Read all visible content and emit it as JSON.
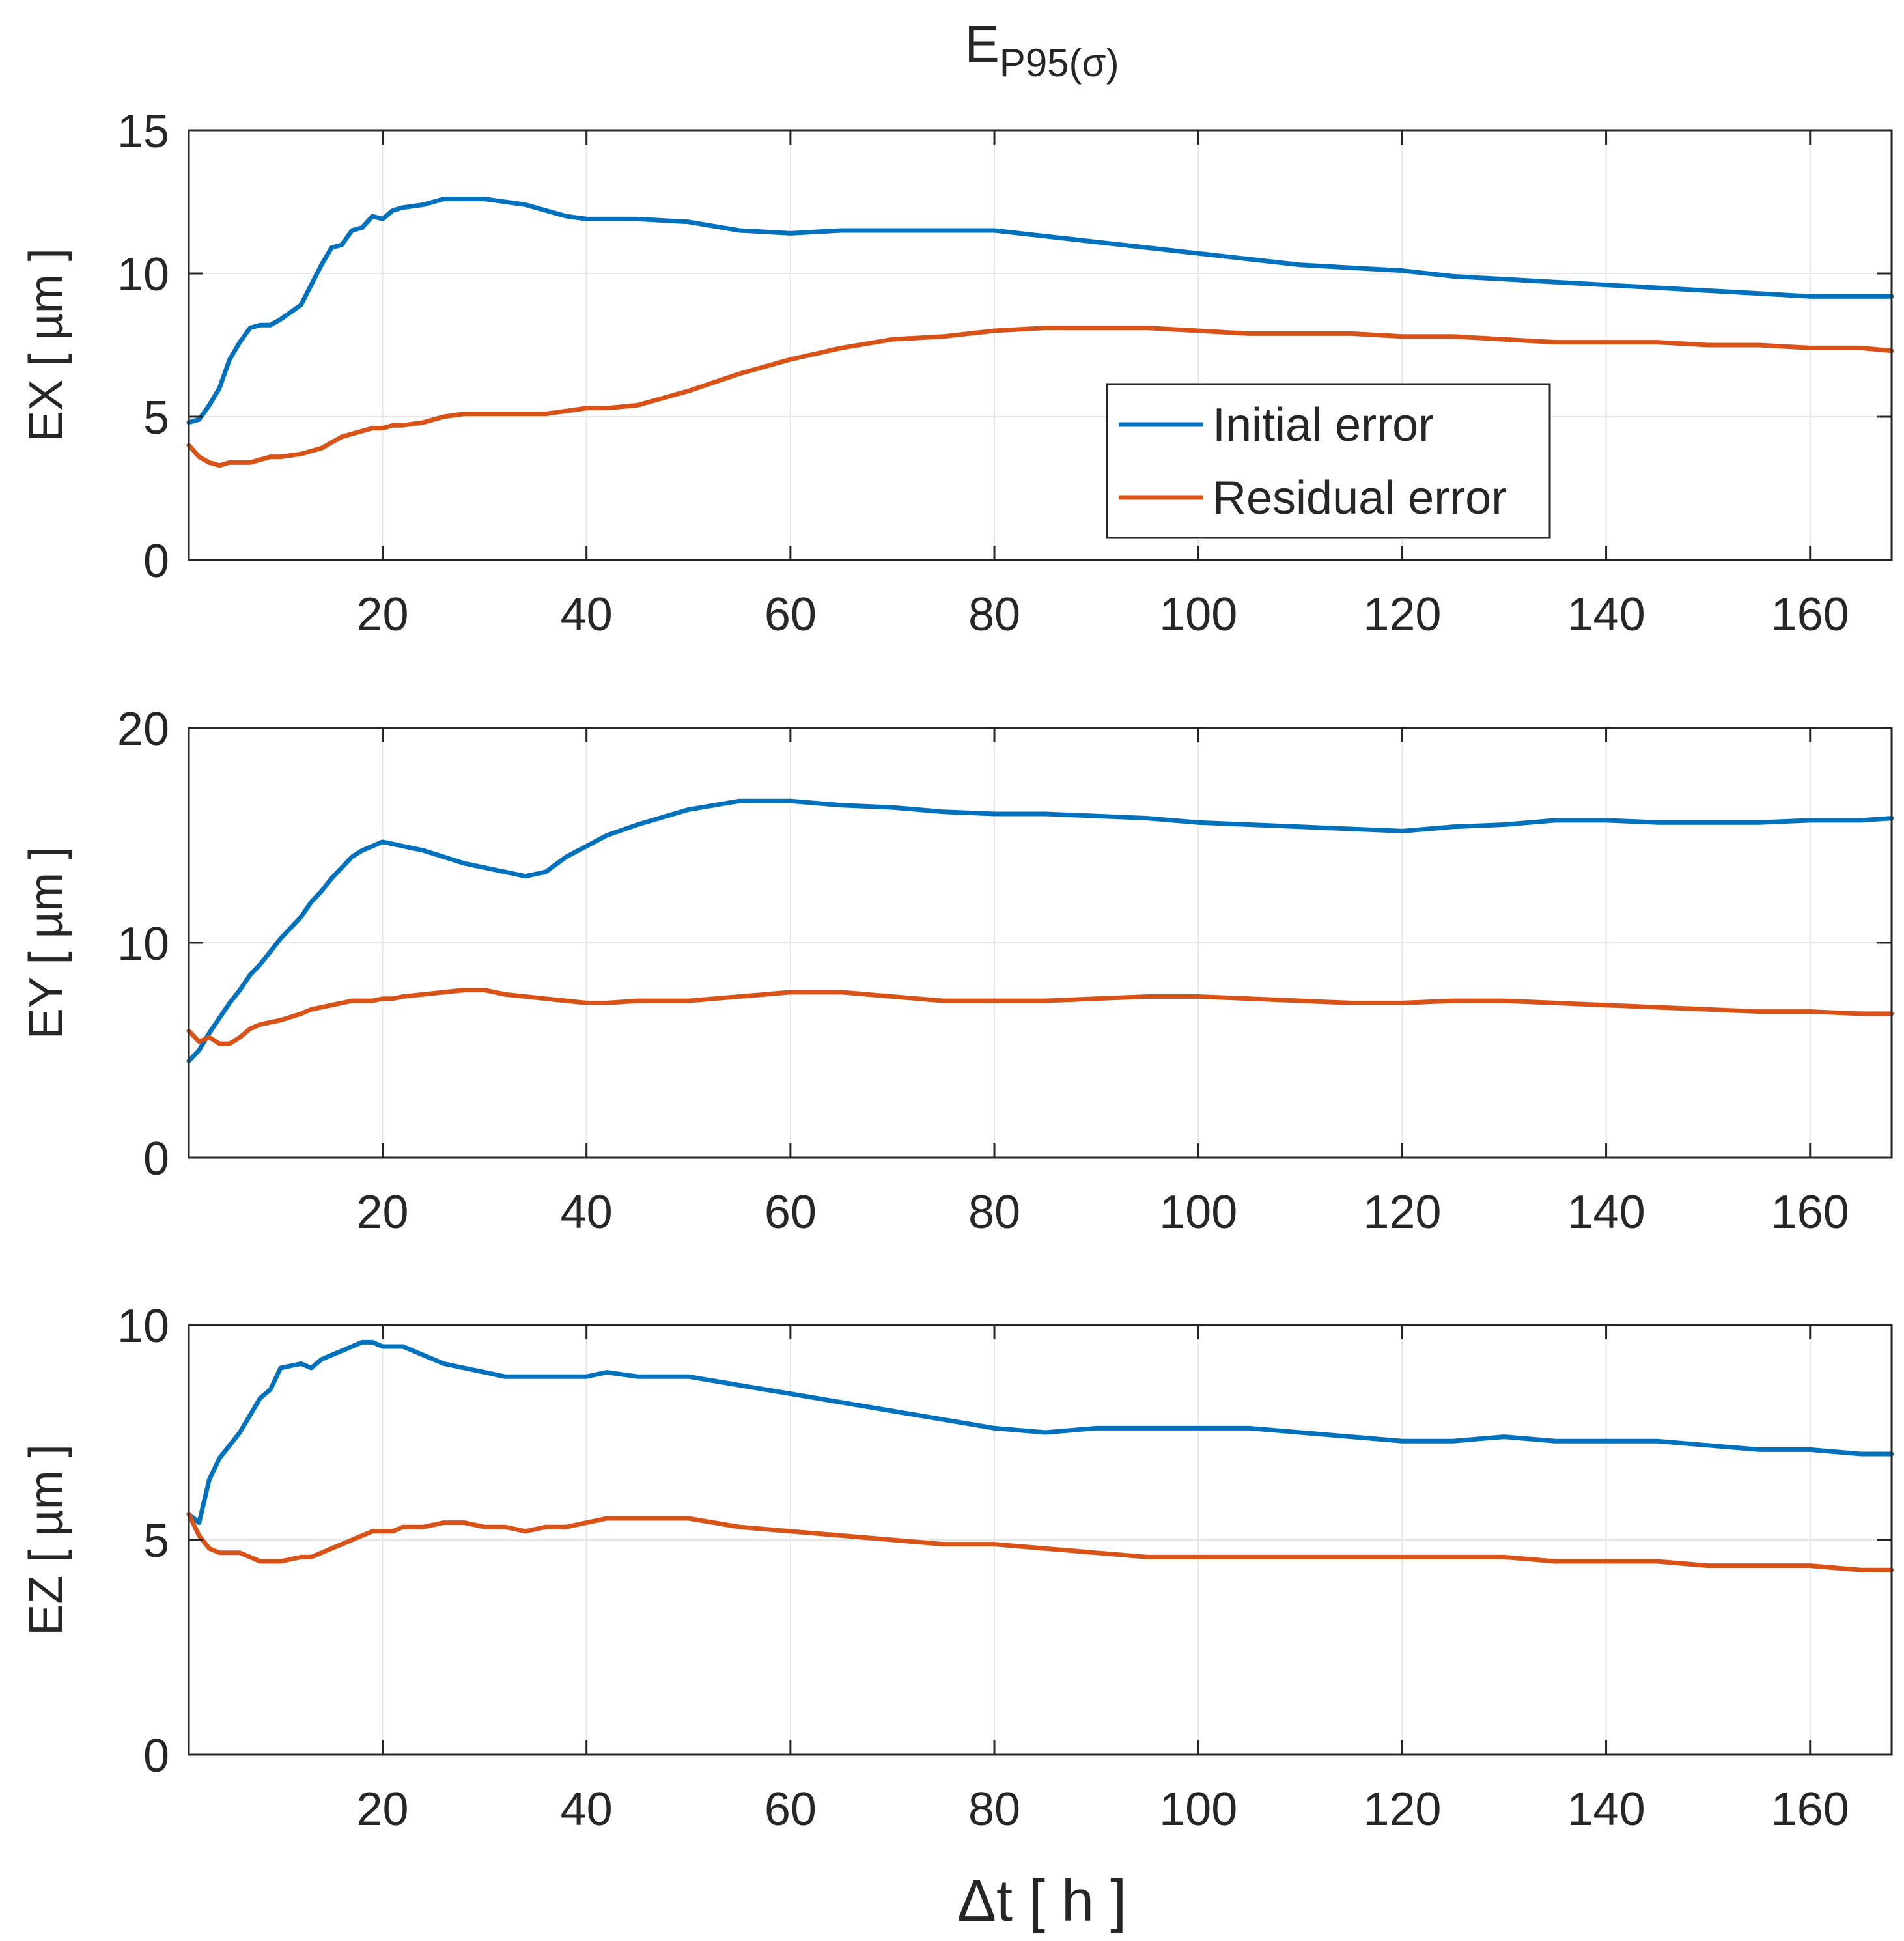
{
  "figure": {
    "title_main": "E",
    "title_sub": "P95(σ)",
    "xlabel": "Δt [ h ]"
  },
  "legend": {
    "entries": [
      "Initial error",
      "Residual error"
    ],
    "colors": [
      "#0072BD",
      "#D95319"
    ],
    "location": "inside-upper-right of top panel"
  },
  "chart_data": [
    {
      "type": "line",
      "panel": "EX",
      "ylabel": "EX [ µm ]",
      "xlim": [
        1,
        168
      ],
      "ylim": [
        0,
        15
      ],
      "xticks": [
        20,
        40,
        60,
        80,
        100,
        120,
        140,
        160
      ],
      "yticks": [
        0,
        5,
        10,
        15
      ],
      "grid": true,
      "x": [
        1,
        2,
        3,
        4,
        5,
        6,
        7,
        8,
        9,
        10,
        12,
        13,
        14,
        15,
        16,
        17,
        18,
        19,
        20,
        21,
        22,
        24,
        26,
        28,
        30,
        32,
        34,
        36,
        38,
        40,
        42,
        45,
        50,
        55,
        60,
        65,
        70,
        75,
        80,
        85,
        90,
        95,
        100,
        105,
        110,
        115,
        120,
        125,
        130,
        135,
        140,
        145,
        150,
        155,
        160,
        165,
        168
      ],
      "series": [
        {
          "name": "Initial error",
          "color": "#0072BD",
          "values": [
            4.8,
            4.9,
            5.4,
            6.0,
            7.0,
            7.6,
            8.1,
            8.2,
            8.2,
            8.4,
            8.9,
            9.6,
            10.3,
            10.9,
            11.0,
            11.5,
            11.6,
            12.0,
            11.9,
            12.2,
            12.3,
            12.4,
            12.6,
            12.6,
            12.6,
            12.5,
            12.4,
            12.2,
            12.0,
            11.9,
            11.9,
            11.9,
            11.8,
            11.5,
            11.4,
            11.5,
            11.5,
            11.5,
            11.5,
            11.3,
            11.1,
            10.9,
            10.7,
            10.5,
            10.3,
            10.2,
            10.1,
            9.9,
            9.8,
            9.7,
            9.6,
            9.5,
            9.4,
            9.3,
            9.2,
            9.2,
            9.2
          ]
        },
        {
          "name": "Residual error",
          "color": "#D95319",
          "values": [
            4.0,
            3.6,
            3.4,
            3.3,
            3.4,
            3.4,
            3.4,
            3.5,
            3.6,
            3.6,
            3.7,
            3.8,
            3.9,
            4.1,
            4.3,
            4.4,
            4.5,
            4.6,
            4.6,
            4.7,
            4.7,
            4.8,
            5.0,
            5.1,
            5.1,
            5.1,
            5.1,
            5.1,
            5.2,
            5.3,
            5.3,
            5.4,
            5.9,
            6.5,
            7.0,
            7.4,
            7.7,
            7.8,
            8.0,
            8.1,
            8.1,
            8.1,
            8.0,
            7.9,
            7.9,
            7.9,
            7.8,
            7.8,
            7.7,
            7.6,
            7.6,
            7.6,
            7.5,
            7.5,
            7.4,
            7.4,
            7.3
          ]
        }
      ]
    },
    {
      "type": "line",
      "panel": "EY",
      "ylabel": "EY [ µm ]",
      "xlim": [
        1,
        168
      ],
      "ylim": [
        0,
        20
      ],
      "xticks": [
        20,
        40,
        60,
        80,
        100,
        120,
        140,
        160
      ],
      "yticks": [
        0,
        10,
        20
      ],
      "grid": true,
      "x": [
        1,
        2,
        3,
        4,
        5,
        6,
        7,
        8,
        9,
        10,
        12,
        13,
        14,
        15,
        16,
        17,
        18,
        19,
        20,
        21,
        22,
        24,
        26,
        28,
        30,
        32,
        34,
        36,
        38,
        40,
        42,
        45,
        50,
        55,
        60,
        65,
        70,
        75,
        80,
        85,
        90,
        95,
        100,
        105,
        110,
        115,
        120,
        125,
        130,
        135,
        140,
        145,
        150,
        155,
        160,
        165,
        168
      ],
      "series": [
        {
          "name": "Initial error",
          "color": "#0072BD",
          "values": [
            4.5,
            5.0,
            5.8,
            6.5,
            7.2,
            7.8,
            8.5,
            9.0,
            9.6,
            10.2,
            11.2,
            11.9,
            12.4,
            13.0,
            13.5,
            14.0,
            14.3,
            14.5,
            14.7,
            14.6,
            14.5,
            14.3,
            14.0,
            13.7,
            13.5,
            13.3,
            13.1,
            13.3,
            14.0,
            14.5,
            15.0,
            15.5,
            16.2,
            16.6,
            16.6,
            16.4,
            16.3,
            16.1,
            16.0,
            16.0,
            15.9,
            15.8,
            15.6,
            15.5,
            15.4,
            15.3,
            15.2,
            15.4,
            15.5,
            15.7,
            15.7,
            15.6,
            15.6,
            15.6,
            15.7,
            15.7,
            15.8
          ]
        },
        {
          "name": "Residual error",
          "color": "#D95319",
          "values": [
            5.9,
            5.4,
            5.6,
            5.3,
            5.3,
            5.6,
            6.0,
            6.2,
            6.3,
            6.4,
            6.7,
            6.9,
            7.0,
            7.1,
            7.2,
            7.3,
            7.3,
            7.3,
            7.4,
            7.4,
            7.5,
            7.6,
            7.7,
            7.8,
            7.8,
            7.6,
            7.5,
            7.4,
            7.3,
            7.2,
            7.2,
            7.3,
            7.3,
            7.5,
            7.7,
            7.7,
            7.5,
            7.3,
            7.3,
            7.3,
            7.4,
            7.5,
            7.5,
            7.4,
            7.3,
            7.2,
            7.2,
            7.3,
            7.3,
            7.2,
            7.1,
            7.0,
            6.9,
            6.8,
            6.8,
            6.7,
            6.7
          ]
        }
      ]
    },
    {
      "type": "line",
      "panel": "EZ",
      "ylabel": "EZ [ µm ]",
      "xlim": [
        1,
        168
      ],
      "ylim": [
        0,
        10
      ],
      "xticks": [
        20,
        40,
        60,
        80,
        100,
        120,
        140,
        160
      ],
      "yticks": [
        0,
        5,
        10
      ],
      "grid": true,
      "x": [
        1,
        2,
        3,
        4,
        5,
        6,
        7,
        8,
        9,
        10,
        12,
        13,
        14,
        15,
        16,
        17,
        18,
        19,
        20,
        21,
        22,
        24,
        26,
        28,
        30,
        32,
        34,
        36,
        38,
        40,
        42,
        45,
        50,
        55,
        60,
        65,
        70,
        75,
        80,
        85,
        90,
        95,
        100,
        105,
        110,
        115,
        120,
        125,
        130,
        135,
        140,
        145,
        150,
        155,
        160,
        165,
        168
      ],
      "series": [
        {
          "name": "Initial error",
          "color": "#0072BD",
          "values": [
            5.6,
            5.4,
            6.4,
            6.9,
            7.2,
            7.5,
            7.9,
            8.3,
            8.5,
            9.0,
            9.1,
            9.0,
            9.2,
            9.3,
            9.4,
            9.5,
            9.6,
            9.6,
            9.5,
            9.5,
            9.5,
            9.3,
            9.1,
            9.0,
            8.9,
            8.8,
            8.8,
            8.8,
            8.8,
            8.8,
            8.9,
            8.8,
            8.8,
            8.6,
            8.4,
            8.2,
            8.0,
            7.8,
            7.6,
            7.5,
            7.6,
            7.6,
            7.6,
            7.6,
            7.5,
            7.4,
            7.3,
            7.3,
            7.4,
            7.3,
            7.3,
            7.3,
            7.2,
            7.1,
            7.1,
            7.0,
            7.0
          ]
        },
        {
          "name": "Residual error",
          "color": "#D95319",
          "values": [
            5.6,
            5.1,
            4.8,
            4.7,
            4.7,
            4.7,
            4.6,
            4.5,
            4.5,
            4.5,
            4.6,
            4.6,
            4.7,
            4.8,
            4.9,
            5.0,
            5.1,
            5.2,
            5.2,
            5.2,
            5.3,
            5.3,
            5.4,
            5.4,
            5.3,
            5.3,
            5.2,
            5.3,
            5.3,
            5.4,
            5.5,
            5.5,
            5.5,
            5.3,
            5.2,
            5.1,
            5.0,
            4.9,
            4.9,
            4.8,
            4.7,
            4.6,
            4.6,
            4.6,
            4.6,
            4.6,
            4.6,
            4.6,
            4.6,
            4.5,
            4.5,
            4.5,
            4.4,
            4.4,
            4.4,
            4.3,
            4.3
          ]
        }
      ]
    }
  ]
}
